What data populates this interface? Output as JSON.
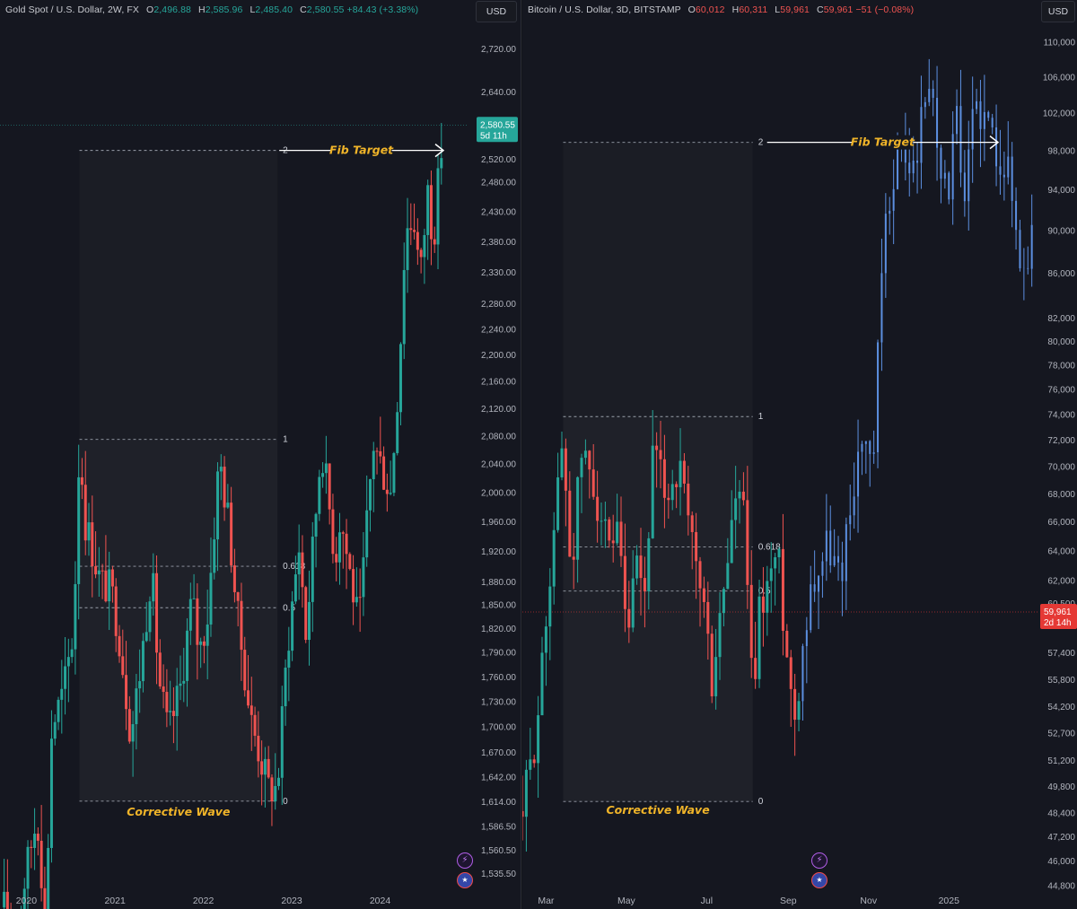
{
  "colors": {
    "up": "#26a69a",
    "down": "#ef5350",
    "projection": "#5c8fe0",
    "fib_text": "#f0b429",
    "bg": "#151720",
    "axis_text": "#b2b5be",
    "grid_dash": "#9aa0ab"
  },
  "left": {
    "header": {
      "symbol": "Gold Spot / U.S. Dollar, 2W, FX",
      "open_label": "O",
      "open": "2,496.88",
      "high_label": "H",
      "high": "2,585.96",
      "low_label": "L",
      "low": "2,485.40",
      "close_label": "C",
      "close": "2,580.55",
      "change": "+84.43 (+3.38%)"
    },
    "currency_button": "USD",
    "last_price_label": "2,580.55",
    "countdown_label": "5d 11h",
    "fib_target_label": "Fib Target",
    "corrective_wave_label": "Corrective Wave",
    "icons": {
      "alert": "bolt-icon",
      "region": "us-flag-icon"
    }
  },
  "right": {
    "header": {
      "symbol": "Bitcoin / U.S. Dollar, 3D, BITSTAMP",
      "open_label": "O",
      "open": "60,012",
      "high_label": "H",
      "high": "60,311",
      "low_label": "L",
      "low": "59,961",
      "close_label": "C",
      "close": "59,961",
      "change": "−51 (−0.08%)"
    },
    "currency_button": "USD",
    "last_price_label": "59,961",
    "countdown_label": "2d 14h",
    "fib_target_label": "Fib Target",
    "corrective_wave_label": "Corrective Wave",
    "icons": {
      "alert": "bolt-icon",
      "region": "us-flag-icon"
    }
  },
  "chart_data": [
    {
      "type": "candlestick",
      "title": "Gold Spot / U.S. Dollar, 2W, FX",
      "y_scale": "log",
      "ylim": [
        1520,
        2745
      ],
      "y_ticks": [
        2720,
        2640,
        2520,
        2480,
        2430,
        2380,
        2330,
        2280,
        2240,
        2200,
        2160,
        2120,
        2080,
        2040,
        2000,
        1960,
        1920,
        1880,
        1850,
        1820,
        1790,
        1760,
        1730,
        1700,
        1670,
        1642,
        1614,
        1586.5,
        1560.5,
        1535.5
      ],
      "y_tick_labels": [
        "2,720.00",
        "2,640.00",
        "2,520.00",
        "2,480.00",
        "2,430.00",
        "2,380.00",
        "2,330.00",
        "2,280.00",
        "2,240.00",
        "2,200.00",
        "2,160.00",
        "2,120.00",
        "2,080.00",
        "2,040.00",
        "2,000.00",
        "1,960.00",
        "1,920.00",
        "1,880.00",
        "1,850.00",
        "1,820.00",
        "1,790.00",
        "1,760.00",
        "1,730.00",
        "1,700.00",
        "1,670.00",
        "1,642.00",
        "1,614.00",
        "1,586.50",
        "1,560.50",
        "1,535.50"
      ],
      "x_ticks": [
        {
          "label": "2020",
          "date": "2020-01-01"
        },
        {
          "label": "2021",
          "date": "2021-01-01"
        },
        {
          "label": "2022",
          "date": "2022-01-01"
        },
        {
          "label": "2023",
          "date": "2023-01-01"
        },
        {
          "label": "2024",
          "date": "2024-01-01"
        }
      ],
      "x_range": [
        "2019-09-14",
        "2024-12-31"
      ],
      "anchors": [
        [
          "2019-10-01",
          1500
        ],
        [
          "2019-11-15",
          1470
        ],
        [
          "2020-01-01",
          1540
        ],
        [
          "2020-02-15",
          1600
        ],
        [
          "2020-03-20",
          1480
        ],
        [
          "2020-04-15",
          1700
        ],
        [
          "2020-06-01",
          1740
        ],
        [
          "2020-07-15",
          1820
        ],
        [
          "2020-08-07",
          2070
        ],
        [
          "2020-09-01",
          1960
        ],
        [
          "2020-11-01",
          1880
        ],
        [
          "2020-12-15",
          1870
        ],
        [
          "2021-01-15",
          1820
        ],
        [
          "2021-03-08",
          1690
        ],
        [
          "2021-04-20",
          1780
        ],
        [
          "2021-06-01",
          1900
        ],
        [
          "2021-06-30",
          1760
        ],
        [
          "2021-08-09",
          1690
        ],
        [
          "2021-09-30",
          1750
        ],
        [
          "2021-11-15",
          1860
        ],
        [
          "2021-12-15",
          1790
        ],
        [
          "2022-01-20",
          1840
        ],
        [
          "2022-03-08",
          2050
        ],
        [
          "2022-04-15",
          1960
        ],
        [
          "2022-05-20",
          1840
        ],
        [
          "2022-07-15",
          1710
        ],
        [
          "2022-09-26",
          1630
        ],
        [
          "2022-11-03",
          1630
        ],
        [
          "2022-12-15",
          1800
        ],
        [
          "2023-02-01",
          1930
        ],
        [
          "2023-03-01",
          1810
        ],
        [
          "2023-05-04",
          2070
        ],
        [
          "2023-06-30",
          1910
        ],
        [
          "2023-07-20",
          1970
        ],
        [
          "2023-10-06",
          1820
        ],
        [
          "2023-12-04",
          2070
        ],
        [
          "2024-02-14",
          2000
        ],
        [
          "2024-03-20",
          2180
        ],
        [
          "2024-04-15",
          2400
        ],
        [
          "2024-05-20",
          2420
        ],
        [
          "2024-06-15",
          2320
        ],
        [
          "2024-07-17",
          2470
        ],
        [
          "2024-08-07",
          2380
        ],
        [
          "2024-09-20",
          2585
        ]
      ],
      "last_price": 2580.55,
      "fib": {
        "levels": [
          {
            "ratio": "2",
            "value": 2535.48
          },
          {
            "ratio": "1",
            "value": 2075.09
          },
          {
            "ratio": "0.618",
            "value": 1900.4
          },
          {
            "ratio": "0.5",
            "value": 1846.5
          },
          {
            "ratio": "0",
            "value": 1614.7
          }
        ],
        "start_date": "2020-08-07",
        "end_date": "2022-11-03"
      }
    },
    {
      "type": "candlestick",
      "title": "Bitcoin / U.S. Dollar, 3D, BITSTAMP",
      "y_scale": "log",
      "ylim": [
        44500,
        111500
      ],
      "y_ticks": [
        110000,
        106000,
        102000,
        98000,
        94000,
        90000,
        86000,
        82000,
        80000,
        78000,
        76000,
        74000,
        72000,
        70000,
        68000,
        66000,
        64000,
        62000,
        60500,
        57400,
        55800,
        54200,
        52700,
        51200,
        49800,
        48400,
        47200,
        46000,
        44800
      ],
      "y_tick_labels": [
        "110,000",
        "106,000",
        "102,000",
        "98,000",
        "94,000",
        "90,000",
        "86,000",
        "82,000",
        "80,000",
        "78,000",
        "76,000",
        "74,000",
        "72,000",
        "70,000",
        "68,000",
        "66,000",
        "64,000",
        "62,000",
        "60,500",
        "57,400",
        "55,800",
        "54,200",
        "52,700",
        "51,200",
        "49,800",
        "48,400",
        "47,200",
        "46,000",
        "44,800"
      ],
      "x_ticks": [
        {
          "label": "Mar",
          "date": "2024-03-01"
        },
        {
          "label": "May",
          "date": "2024-05-01"
        },
        {
          "label": "Jul",
          "date": "2024-07-01"
        },
        {
          "label": "Sep",
          "date": "2024-09-01"
        },
        {
          "label": "Nov",
          "date": "2024-11-01"
        },
        {
          "label": "2025",
          "date": "2025-01-01"
        }
      ],
      "x_range": [
        "2024-02-12",
        "2025-03-10"
      ],
      "anchors": [
        [
          "2024-02-12",
          48500
        ],
        [
          "2024-02-20",
          51500
        ],
        [
          "2024-02-28",
          57000
        ],
        [
          "2024-03-05",
          64000
        ],
        [
          "2024-03-14",
          72000
        ],
        [
          "2024-03-20",
          62500
        ],
        [
          "2024-03-28",
          71000
        ],
        [
          "2024-04-07",
          68500
        ],
        [
          "2024-04-19",
          63000
        ],
        [
          "2024-04-25",
          65000
        ],
        [
          "2024-05-01",
          58000
        ],
        [
          "2024-05-09",
          62500
        ],
        [
          "2024-05-15",
          61000
        ],
        [
          "2024-05-21",
          70500
        ],
        [
          "2024-06-01",
          68000
        ],
        [
          "2024-06-10",
          70000
        ],
        [
          "2024-06-18",
          65000
        ],
        [
          "2024-06-28",
          61000
        ],
        [
          "2024-07-05",
          55500
        ],
        [
          "2024-07-15",
          62000
        ],
        [
          "2024-07-22",
          67500
        ],
        [
          "2024-07-29",
          67000
        ],
        [
          "2024-08-05",
          54000
        ],
        [
          "2024-08-10",
          60000
        ],
        [
          "2024-08-24",
          64000
        ],
        [
          "2024-08-30",
          58000
        ],
        [
          "2024-09-06",
          53500
        ],
        [
          "2024-09-12",
          58000
        ],
        [
          "2024-09-18",
          61500
        ],
        [
          "2024-10-01",
          64500
        ],
        [
          "2024-10-10",
          62000
        ],
        [
          "2024-10-20",
          68500
        ],
        [
          "2024-10-28",
          72500
        ],
        [
          "2024-11-04",
          68500
        ],
        [
          "2024-11-12",
          88000
        ],
        [
          "2024-11-22",
          98000
        ],
        [
          "2024-12-05",
          96000
        ],
        [
          "2024-12-17",
          106000
        ],
        [
          "2024-12-30",
          93000
        ],
        [
          "2025-01-07",
          101000
        ],
        [
          "2025-01-13",
          91000
        ],
        [
          "2025-01-20",
          104000
        ],
        [
          "2025-02-01",
          100000
        ],
        [
          "2025-02-15",
          96000
        ],
        [
          "2025-02-25",
          86000
        ],
        [
          "2025-03-05",
          89000
        ]
      ],
      "last_price": 59961,
      "fib": {
        "levels": [
          {
            "ratio": "2",
            "value": 98883
          },
          {
            "ratio": "1",
            "value": 73835
          },
          {
            "ratio": "0.618",
            "value": 64265
          },
          {
            "ratio": "0.5",
            "value": 61310
          },
          {
            "ratio": "0",
            "value": 49000
          }
        ],
        "start_date": "2024-03-14",
        "end_date": "2024-08-05"
      }
    }
  ]
}
